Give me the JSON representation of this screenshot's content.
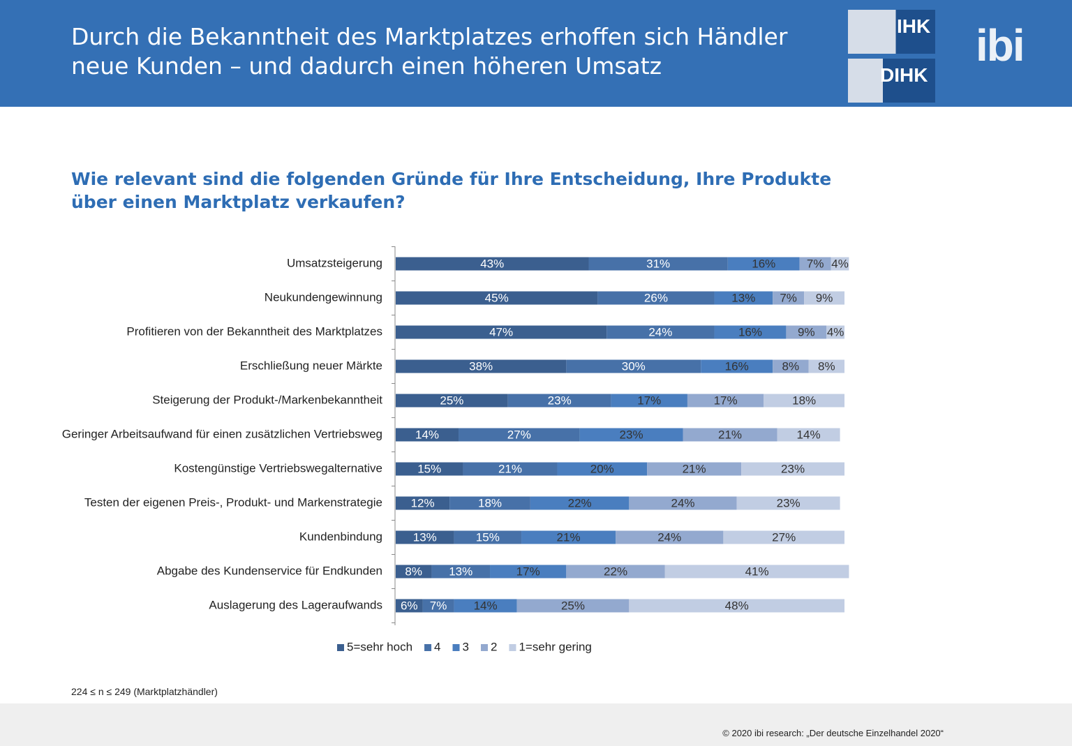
{
  "header": {
    "title": "Durch die Bekanntheit des Marktplatzes erhoffen sich Händler neue Kunden – und dadurch einen höheren Umsatz",
    "logos": [
      "IHK",
      "DIHK",
      "ibi"
    ]
  },
  "chart_data": {
    "type": "stacked-barh",
    "title": "Wie relevant sind die folgenden Gründe für Ihre Entscheidung, Ihre Produkte über einen Marktplatz verkaufen?",
    "categories": [
      "Umsatzsteigerung",
      "Neukundengewinnung",
      "Profitieren von der Bekanntheit des Marktplatzes",
      "Erschließung neuer Märkte",
      "Steigerung der Produkt-/Markenbekanntheit",
      "Geringer Arbeitsaufwand für einen zusätzlichen Vertriebsweg",
      "Kostengünstige Vertriebswegalternative",
      "Testen der eigenen Preis-, Produkt- und Markenstrategie",
      "Kundenbindung",
      "Abgabe des Kundenservice für Endkunden",
      "Auslagerung des Lageraufwands"
    ],
    "xlim": [
      0,
      100
    ],
    "series": [
      {
        "name": "5=sehr hoch",
        "color": "#3b5f8f",
        "values": [
          43,
          45,
          47,
          38,
          25,
          14,
          15,
          12,
          13,
          8,
          6
        ],
        "value_labels": [
          "43%",
          "45%",
          "47%",
          "38%",
          "25%",
          "14%",
          "15%",
          "12%",
          "13%",
          "8%",
          "6%"
        ]
      },
      {
        "name": "4",
        "color": "#4771a8",
        "values": [
          31,
          26,
          24,
          30,
          23,
          27,
          21,
          18,
          15,
          13,
          7
        ],
        "value_labels": [
          "31%",
          "26%",
          "24%",
          "30%",
          "23%",
          "27%",
          "21%",
          "18%",
          "15%",
          "13%",
          "7%"
        ]
      },
      {
        "name": "3",
        "color": "#4a7ebf",
        "values": [
          16,
          13,
          16,
          16,
          17,
          23,
          20,
          22,
          21,
          17,
          14
        ],
        "value_labels": [
          "16%",
          "13%",
          "16%",
          "16%",
          "17%",
          "23%",
          "20%",
          "22%",
          "21%",
          "17%",
          "14%"
        ]
      },
      {
        "name": "2",
        "color": "#93a9cf",
        "values": [
          7,
          7,
          9,
          8,
          17,
          21,
          21,
          24,
          24,
          22,
          25
        ],
        "value_labels": [
          "7%",
          "7%",
          "9%",
          "8%",
          "17%",
          "21%",
          "21%",
          "24%",
          "24%",
          "22%",
          "25%"
        ]
      },
      {
        "name": "1=sehr gering",
        "color": "#c1cde3",
        "values": [
          4,
          9,
          4,
          8,
          18,
          14,
          23,
          23,
          27,
          41,
          48
        ],
        "value_labels": [
          "4%",
          "9%",
          "4%",
          "8%",
          "18%",
          "14%",
          "23%",
          "23%",
          "27%",
          "41%",
          "48%"
        ]
      }
    ]
  },
  "footnote": "224 ≤ n ≤ 249 (Marktplatzhändler)",
  "copyright": "© 2020 ibi research: „Der deutsche Einzelhandel 2020“"
}
